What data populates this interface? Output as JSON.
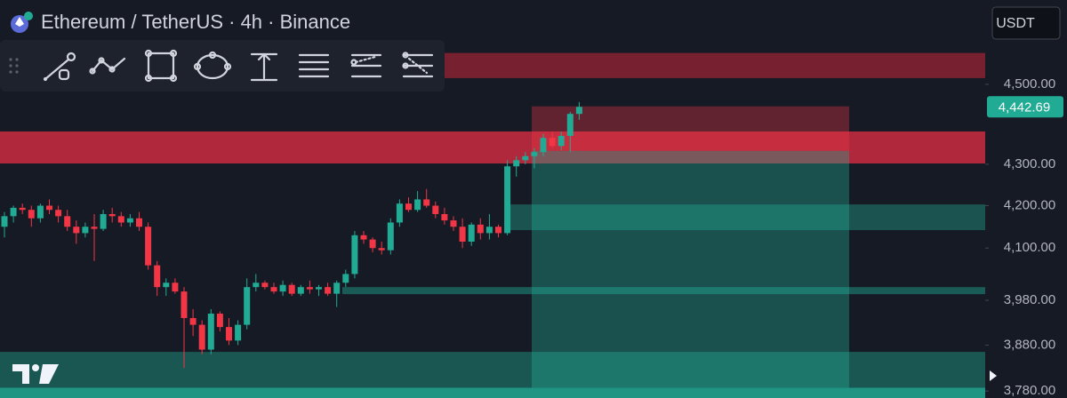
{
  "chart_data": {
    "type": "candlestick",
    "title": "Ethereum / TetherUS · 4h · Binance",
    "currency": "USDT",
    "log_scale": true,
    "ylim": [
      3765,
      4721
    ],
    "yticks": [
      {
        "value": 4500,
        "label": "4,500.00"
      },
      {
        "value": 4300,
        "label": "4,300.00"
      },
      {
        "value": 4200,
        "label": "4,200.00"
      },
      {
        "value": 4100,
        "label": "4,100.00"
      },
      {
        "value": 3980,
        "label": "3,980.00"
      },
      {
        "value": 3880,
        "label": "3,880.00"
      },
      {
        "value": 3780,
        "label": "3,780.00"
      }
    ],
    "last_price": {
      "value": 4442.69,
      "label": "4,442.69"
    },
    "up_color": "#22ab94",
    "down_color": "#f23645",
    "open": [
      4150,
      4175,
      4195,
      4190,
      4170,
      4200,
      4190,
      4175,
      4150,
      4135,
      4150,
      4145,
      4180,
      4175,
      4160,
      4170,
      4150,
      4060,
      4010,
      4020,
      4000,
      3940,
      3925,
      3870,
      3950,
      3920,
      3890,
      3925,
      4010,
      4020,
      4010,
      4000,
      4015,
      3995,
      4010,
      4005,
      4010,
      3995,
      4020,
      4040,
      4130,
      4120,
      4100,
      4095,
      4160,
      4205,
      4190,
      4215,
      4200,
      4180,
      4165,
      4150,
      4115,
      4155,
      4135,
      4150,
      4135,
      4295,
      4310,
      4320,
      4330,
      4365,
      4345,
      4370,
      4425
    ],
    "high": [
      4185,
      4200,
      4205,
      4200,
      4205,
      4215,
      4200,
      4190,
      4165,
      4160,
      4180,
      4190,
      4195,
      4185,
      4180,
      4185,
      4160,
      4070,
      4030,
      4030,
      4010,
      3960,
      3935,
      3960,
      3955,
      3940,
      3935,
      4030,
      4040,
      4025,
      4020,
      4025,
      4020,
      4015,
      4025,
      4015,
      4020,
      4025,
      4050,
      4140,
      4140,
      4125,
      4115,
      4170,
      4215,
      4220,
      4235,
      4240,
      4210,
      4195,
      4175,
      4170,
      4160,
      4170,
      4180,
      4155,
      4310,
      4320,
      4330,
      4340,
      4375,
      4380,
      4380,
      4430,
      4455
    ],
    "low": [
      4125,
      4160,
      4180,
      4150,
      4160,
      4180,
      4160,
      4140,
      4110,
      4125,
      4070,
      4140,
      4160,
      4150,
      4150,
      4140,
      4050,
      3990,
      3990,
      3995,
      3830,
      3900,
      3860,
      3860,
      3910,
      3880,
      3880,
      3915,
      4000,
      4005,
      3995,
      3990,
      3990,
      3990,
      3995,
      3990,
      3990,
      3965,
      4010,
      4030,
      4110,
      4090,
      4085,
      4085,
      4150,
      4185,
      4185,
      4195,
      4170,
      4155,
      4140,
      4100,
      4105,
      4120,
      4120,
      4125,
      4130,
      4270,
      4300,
      4290,
      4320,
      4340,
      4335,
      4330,
      4410
    ],
    "close": [
      4175,
      4195,
      4190,
      4170,
      4200,
      4190,
      4175,
      4150,
      4135,
      4150,
      4145,
      4180,
      4175,
      4160,
      4170,
      4150,
      4060,
      4010,
      4020,
      4000,
      3940,
      3925,
      3870,
      3950,
      3920,
      3890,
      3925,
      4010,
      4020,
      4010,
      4000,
      4015,
      3995,
      4010,
      4005,
      4010,
      3995,
      4020,
      4040,
      4130,
      4120,
      4100,
      4095,
      4160,
      4205,
      4190,
      4215,
      4200,
      4180,
      4165,
      4150,
      4115,
      4155,
      4135,
      4150,
      4135,
      4295,
      4310,
      4320,
      4330,
      4365,
      4345,
      4370,
      4425,
      4442.69
    ],
    "zones": [
      {
        "low": 4516,
        "high": 4581,
        "color": "rgba(200,40,58,0.55)"
      },
      {
        "low": 4302,
        "high": 4381,
        "color": "rgba(220,45,65,0.78)"
      },
      {
        "low": 4333,
        "high": 4444,
        "color": "rgba(242,54,69,0.35)"
      },
      {
        "low": 3787,
        "high": 4333,
        "color": "rgba(34,171,148,0.38)"
      },
      {
        "low": 4142,
        "high": 4203,
        "color": "rgba(34,171,148,0.40)"
      },
      {
        "low": 3994,
        "high": 4010,
        "color": "rgba(34,171,148,0.45)"
      },
      {
        "low": 3787,
        "high": 3865,
        "color": "rgba(34,171,148,0.42)"
      },
      {
        "low": 3765,
        "high": 3787,
        "color": "rgba(34,171,148,0.85)"
      }
    ]
  }
}
